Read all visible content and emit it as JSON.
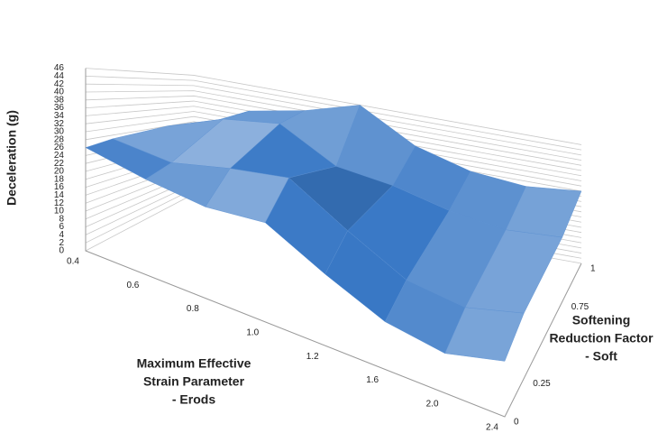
{
  "chart_data": {
    "type": "surface",
    "z_label": "Deceleration (g)",
    "x_label": [
      "Maximum Effective",
      "Strain Parameter",
      "- Erods"
    ],
    "y_label": [
      "Softening",
      "Reduction Factor",
      "- Soft"
    ],
    "xticks": [
      0.4,
      0.6,
      0.8,
      {
        "value": 1,
        "label": "1.0"
      },
      1.2,
      1.6,
      {
        "value": 2,
        "label": "2.0"
      },
      2.4
    ],
    "yticks": [
      0,
      0.25,
      0.75,
      1
    ],
    "zlim": [
      0,
      46
    ],
    "zticks": [
      0,
      2,
      4,
      6,
      8,
      10,
      12,
      14,
      16,
      18,
      20,
      22,
      24,
      26,
      28,
      30,
      32,
      34,
      36,
      38,
      40,
      42,
      44,
      46
    ],
    "color": "#5b8fd0",
    "values": [
      [
        26,
        24,
        23,
        25,
        18,
        12,
        10,
        14
      ],
      [
        27,
        26,
        30,
        33,
        24,
        16,
        14,
        18
      ],
      [
        28,
        35,
        38,
        28,
        26,
        22,
        20,
        22
      ],
      [
        26,
        36,
        40,
        46,
        34,
        28,
        26,
        28
      ]
    ]
  }
}
